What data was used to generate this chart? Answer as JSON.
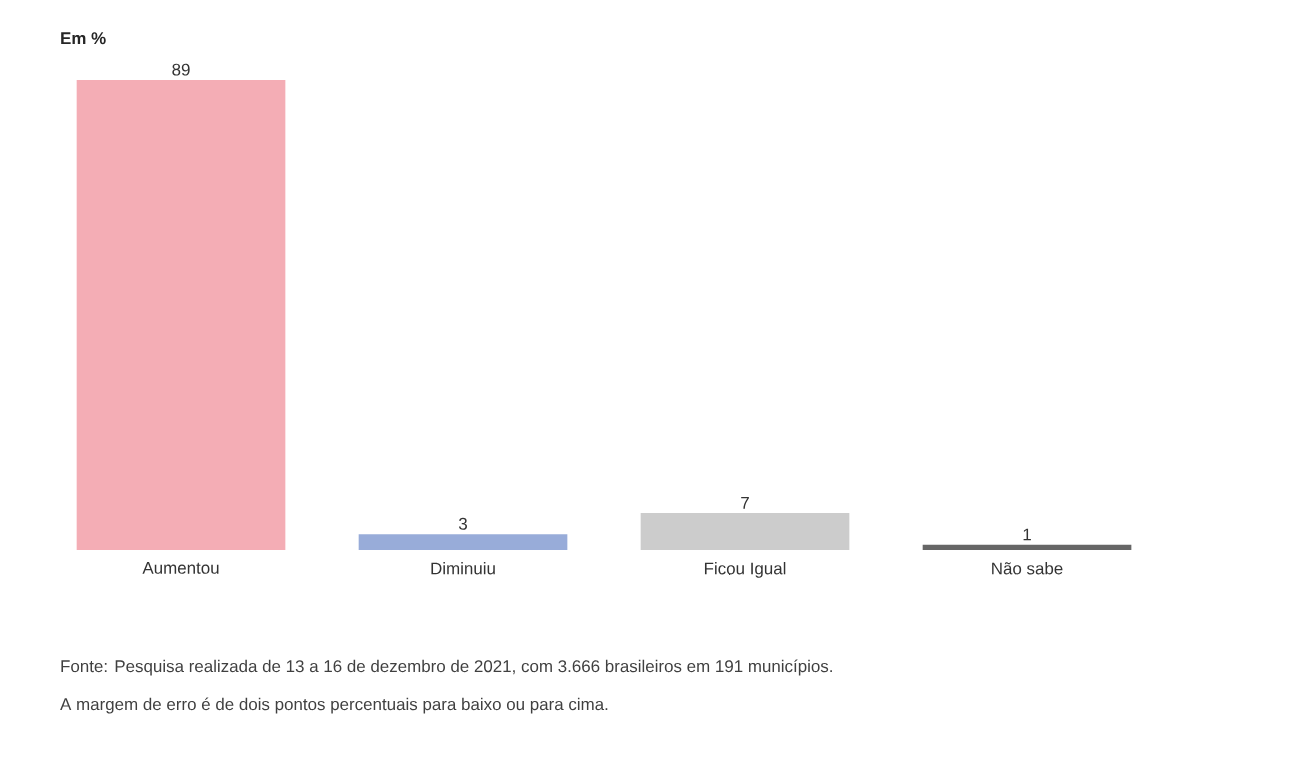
{
  "chart_data": {
    "type": "bar",
    "title": "Em %",
    "categories": [
      "Aumentou",
      "Diminuiu",
      "Ficou Igual",
      "Não sabe"
    ],
    "values": [
      89,
      3,
      7,
      1
    ],
    "colors": [
      "#f4adb5",
      "#98acd9",
      "#cccccc",
      "#666666"
    ],
    "data_labels": true,
    "annotations": [
      "Fonte: Pesquisa realizada de 13 a 16 de dezembro de 2021, com 3.666 brasileiros em 191 municípios.",
      "A margem de erro é de dois pontos percentuais para baixo ou para cima."
    ]
  }
}
